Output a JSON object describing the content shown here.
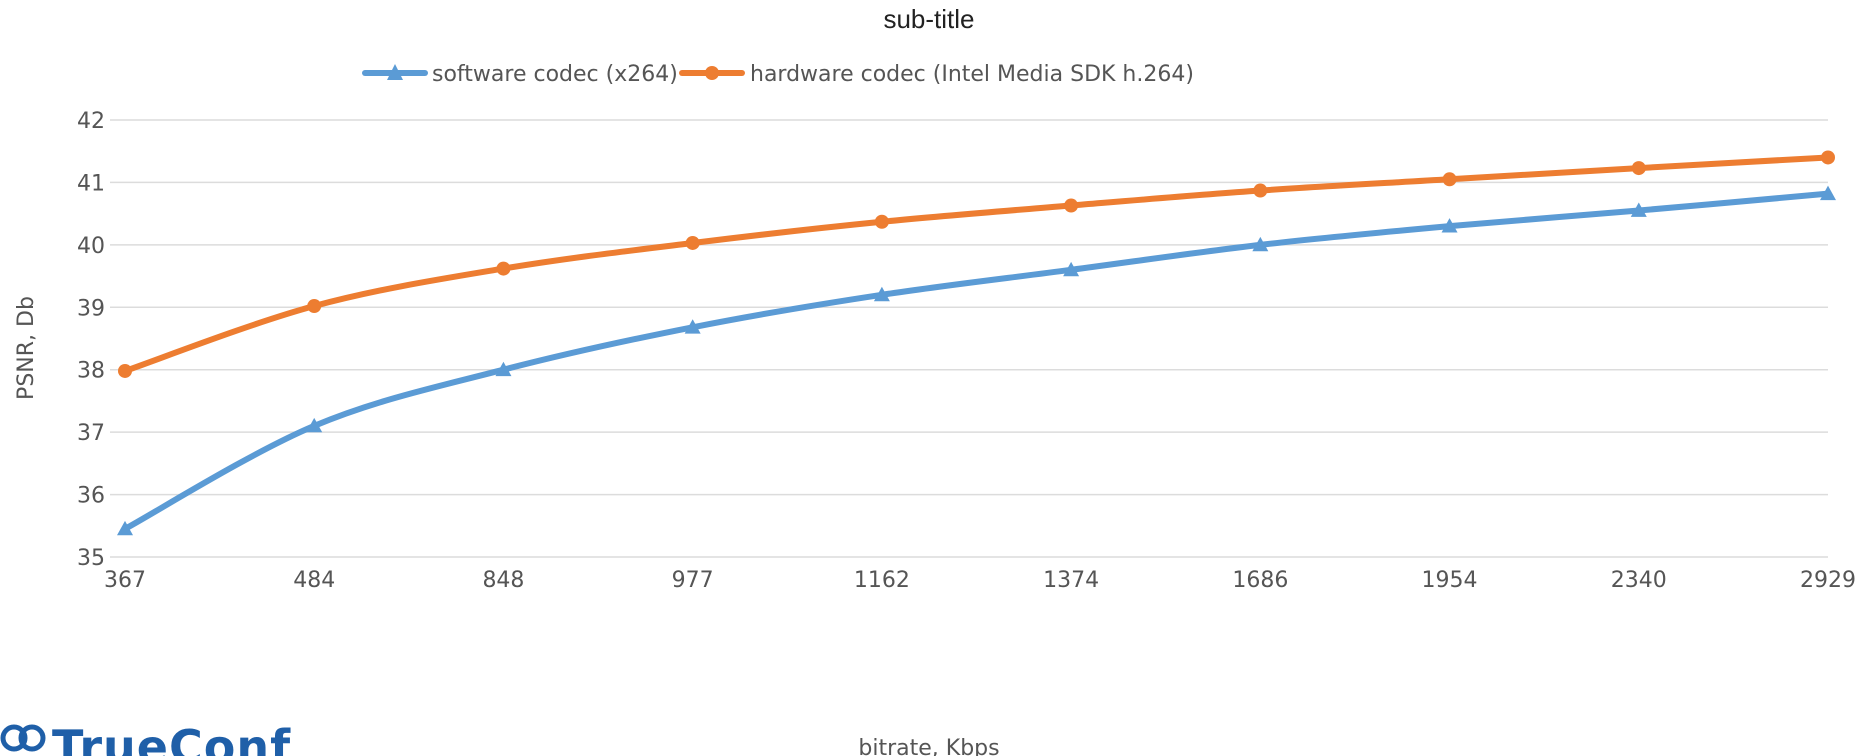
{
  "chart_data": {
    "type": "line",
    "title": "sub-title",
    "xlabel": "bitrate, Kbps",
    "ylabel": "PSNR, Db",
    "categories": [
      "367",
      "484",
      "848",
      "977",
      "1162",
      "1374",
      "1686",
      "1954",
      "2340",
      "2929"
    ],
    "ylim": [
      35,
      42
    ],
    "yticks": [
      35,
      36,
      37,
      38,
      39,
      40,
      41,
      42
    ],
    "grid": true,
    "legend_position": "top",
    "series": [
      {
        "name": "software codec (x264)",
        "color": "#5b9bd5",
        "marker": "triangle",
        "values": [
          35.45,
          37.1,
          38.0,
          38.68,
          39.2,
          39.6,
          40.0,
          40.3,
          40.55,
          40.82
        ]
      },
      {
        "name": "hardware codec (Intel Media SDK h.264)",
        "color": "#ed7d31",
        "marker": "circle",
        "values": [
          37.98,
          39.02,
          39.62,
          40.03,
          40.37,
          40.63,
          40.87,
          41.05,
          41.23,
          41.4
        ]
      }
    ]
  },
  "logo": {
    "text": "TrueConf",
    "icon": "trueconf-logo-icon",
    "color": "#1f5fa8"
  }
}
